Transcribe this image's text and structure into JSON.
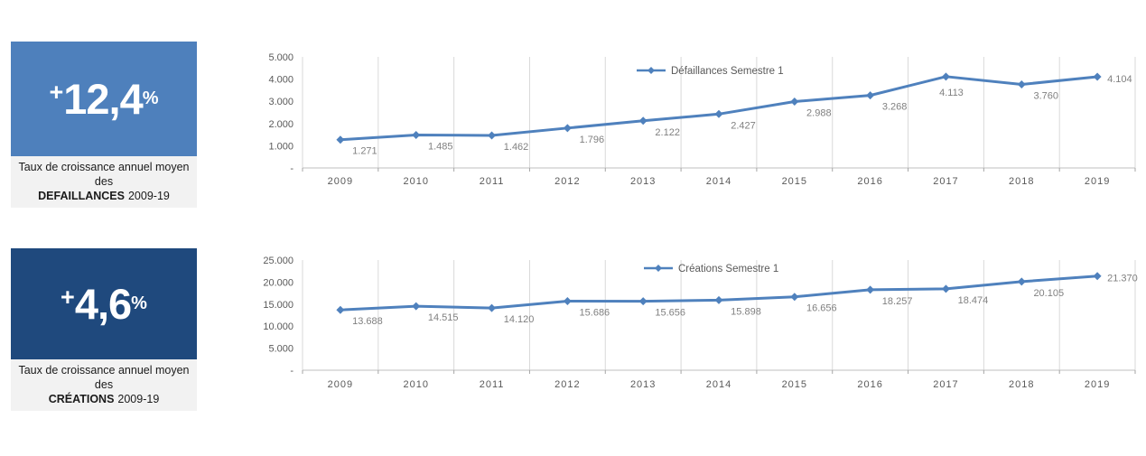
{
  "cards": [
    {
      "sign": "+",
      "value": "12,4",
      "unit": "%",
      "caption_line1": "Taux de croissance annuel moyen des",
      "caption_bold": "DEFAILLANCES",
      "caption_rest": "2009-19",
      "color": "#4e80bc"
    },
    {
      "sign": "+",
      "value": "4,6",
      "unit": "%",
      "caption_line1": "Taux de croissance annuel moyen des",
      "caption_bold": "CRÉATIONS",
      "caption_rest": "2009-19",
      "color": "#1f497d"
    }
  ],
  "chart_data": [
    {
      "type": "line",
      "title": "",
      "categories": [
        "2009",
        "2010",
        "2011",
        "2012",
        "2013",
        "2014",
        "2015",
        "2016",
        "2017",
        "2018",
        "2019"
      ],
      "series": [
        {
          "name": "Défaillances Semestre 1",
          "values": [
            1271,
            1485,
            1462,
            1796,
            2122,
            2427,
            2988,
            3268,
            4113,
            3760,
            4104
          ],
          "labels": [
            "1.271",
            "1.485",
            "1.462",
            "1.796",
            "2.122",
            "2.427",
            "2.988",
            "3.268",
            "4.113",
            "3.760",
            "4.104"
          ]
        }
      ],
      "ylim": [
        0,
        5000
      ],
      "ytick_values": [
        0,
        1000,
        2000,
        3000,
        4000,
        5000
      ],
      "ytick_labels": [
        "-",
        "1.000",
        "2.000",
        "3.000",
        "4.000",
        "5.000"
      ],
      "legend_position": "top-center",
      "grid": "vertical-only",
      "marker": "diamond",
      "line_color": "#4F81BD",
      "data_label_color": "#808080",
      "axis_label_color": "#595959",
      "gridline_color": "#d9d9d9",
      "axis_line_color": "#bfbfbf"
    },
    {
      "type": "line",
      "title": "",
      "categories": [
        "2009",
        "2010",
        "2011",
        "2012",
        "2013",
        "2014",
        "2015",
        "2016",
        "2017",
        "2018",
        "2019"
      ],
      "series": [
        {
          "name": "Créations Semestre 1",
          "values": [
            13688,
            14515,
            14120,
            15686,
            15656,
            15898,
            16656,
            18257,
            18474,
            20105,
            21370
          ],
          "labels": [
            "13.688",
            "14.515",
            "14.120",
            "15.686",
            "15.656",
            "15.898",
            "16.656",
            "18.257",
            "18.474",
            "20.105",
            "21.370"
          ]
        }
      ],
      "ylim": [
        0,
        25000
      ],
      "ytick_values": [
        0,
        5000,
        10000,
        15000,
        20000,
        25000
      ],
      "ytick_labels": [
        "-",
        "5.000",
        "10.000",
        "15.000",
        "20.000",
        "25.000"
      ],
      "legend_position": "top-center",
      "grid": "vertical-only",
      "marker": "diamond",
      "line_color": "#4F81BD",
      "data_label_color": "#808080",
      "axis_label_color": "#595959",
      "gridline_color": "#d9d9d9",
      "axis_line_color": "#bfbfbf"
    }
  ]
}
